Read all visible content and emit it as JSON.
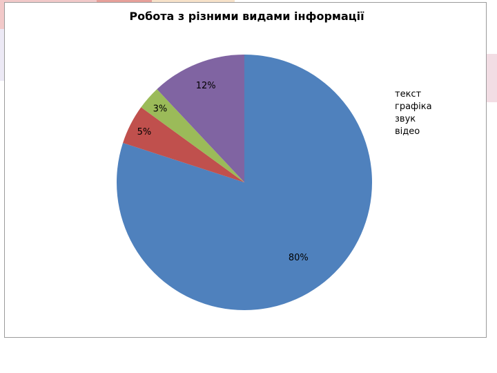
{
  "chart_data": {
    "type": "pie",
    "title": "Робота з різними видами інформації",
    "categories": [
      "текст",
      "графіка",
      "звук",
      "відео"
    ],
    "values": [
      80,
      5,
      3,
      12
    ],
    "data_labels": [
      "80%",
      "5%",
      "3%",
      "12%"
    ],
    "colors": [
      "#4f81bd",
      "#c0504d",
      "#9bbb59",
      "#8064a2"
    ],
    "legend_placement": "right"
  }
}
